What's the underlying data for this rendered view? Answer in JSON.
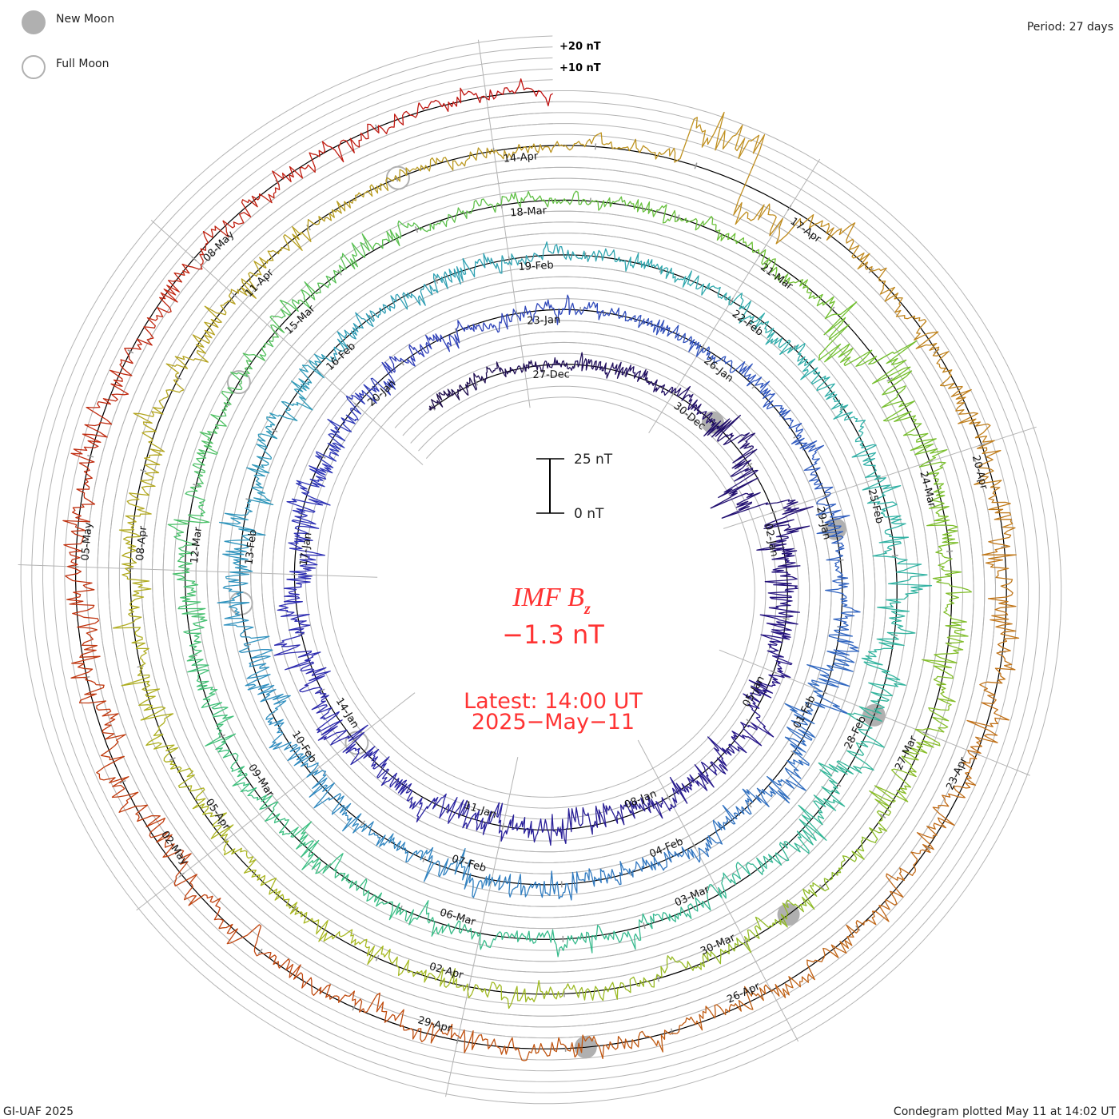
{
  "legend": {
    "new_moon_label": "New Moon",
    "full_moon_label": "Full Moon"
  },
  "period_label": "Period: 27 days",
  "footer": {
    "left": "GI-UAF 2025",
    "right": "Condegram plotted May 11 at 14:02 UT"
  },
  "grid_labels": {
    "plus20": "+20 nT",
    "plus10": "+10 nT"
  },
  "scale_bar": {
    "top_label": "25 nT",
    "bottom_label": "0 nT"
  },
  "center": {
    "title_main": "IMF B",
    "title_sub": "z",
    "value": "−1.3 nT",
    "latest": "Latest: 14:00 UT",
    "date": "2025−May−11"
  },
  "colors": {
    "text_accent": "#ff3333",
    "grid": "#b4b4b4",
    "baseline": "#000000",
    "moon": "#b0b0b0",
    "palette": [
      "#1c0a3c",
      "#241280",
      "#2e2eb4",
      "#3060c0",
      "#3090c0",
      "#30b0a8",
      "#3cc080",
      "#70c030",
      "#a8b820",
      "#c09020",
      "#c05010",
      "#c01010"
    ]
  },
  "chart_data": {
    "type": "line",
    "subtype": "condegram-spiral",
    "title": "IMF Bz",
    "units": "nT",
    "period_days": 27,
    "start": "2024-12-24T22:00",
    "end": "2025-05-11T14:00",
    "latest_value": -1.3,
    "scale_bar_nT": [
      0,
      25
    ],
    "grid_step_nT": 5,
    "date_label_start": "2024-12-27",
    "date_label_step_days": 3,
    "date_labels": [
      "27-Dec",
      "30-Dec",
      "02-Jan",
      "05-Jan",
      "08-Jan",
      "11-Jan",
      "14-Jan",
      "17-Jan",
      "20-Jan",
      "23-Jan",
      "26-Jan",
      "29-Jan",
      "01-Feb",
      "04-Feb",
      "07-Feb",
      "10-Feb",
      "13-Feb",
      "16-Feb",
      "19-Feb",
      "22-Feb",
      "25-Feb",
      "28-Feb",
      "03-Mar",
      "06-Mar",
      "09-Mar",
      "12-Mar",
      "15-Mar",
      "18-Mar",
      "21-Mar",
      "24-Mar",
      "27-Mar",
      "30-Mar",
      "02-Apr",
      "05-Apr",
      "08-Apr",
      "11-Apr",
      "14-Apr",
      "17-Apr",
      "20-Apr",
      "23-Apr",
      "26-Apr",
      "29-Apr",
      "02-May",
      "05-May",
      "08-May"
    ],
    "new_moons": [
      "2024-12-30T22:27",
      "2025-01-29T12:36",
      "2025-02-28T00:45",
      "2025-03-29T10:58",
      "2025-04-27T19:31"
    ],
    "full_moons": [
      "2025-01-13T22:27",
      "2025-02-12T13:53",
      "2025-03-14T06:55",
      "2025-04-13T00:22"
    ],
    "daily_amplitude_start": "2024-12-24",
    "daily_amplitude_nT": [
      3,
      3,
      2.5,
      2.5,
      3,
      3,
      3.5,
      6,
      10,
      9,
      8,
      7,
      6,
      5,
      5,
      5,
      6,
      6,
      6,
      5,
      6,
      7,
      7,
      6,
      7,
      6,
      5,
      4,
      4,
      3,
      3,
      3,
      3,
      3,
      4,
      4,
      5,
      4,
      7,
      7,
      6,
      4,
      4,
      4,
      5,
      5,
      4,
      5,
      5,
      6,
      6,
      6,
      5,
      5,
      4,
      4,
      4,
      3,
      3,
      3,
      4,
      5,
      5,
      6,
      7,
      7,
      7,
      6,
      5,
      4,
      4,
      4,
      4,
      4,
      5,
      5,
      5,
      5,
      5,
      4,
      4,
      4,
      4,
      3,
      3,
      3,
      3,
      4,
      8,
      7,
      6,
      5,
      7,
      6,
      4,
      4,
      4,
      4,
      4,
      4,
      4,
      4,
      5,
      5,
      5,
      5,
      5,
      4,
      4,
      3,
      3,
      3,
      4,
      6,
      4,
      4,
      4,
      5,
      6,
      6,
      4,
      4,
      4,
      4,
      4,
      4,
      4,
      4,
      5,
      6,
      6,
      6,
      5,
      5,
      5,
      4,
      4,
      3,
      3
    ],
    "excursions": [
      {
        "start": "2025-04-15T20:00",
        "end": "2025-04-16T12:00",
        "bz": 17
      },
      {
        "start": "2025-04-16T12:00",
        "end": "2025-04-17T03:00",
        "bz": -13
      },
      {
        "start": "2025-01-01T06:00",
        "end": "2025-01-01T20:00",
        "bz": -9
      },
      {
        "start": "2025-03-22T00:00",
        "end": "2025-03-22T18:00",
        "bz": -6
      }
    ]
  }
}
